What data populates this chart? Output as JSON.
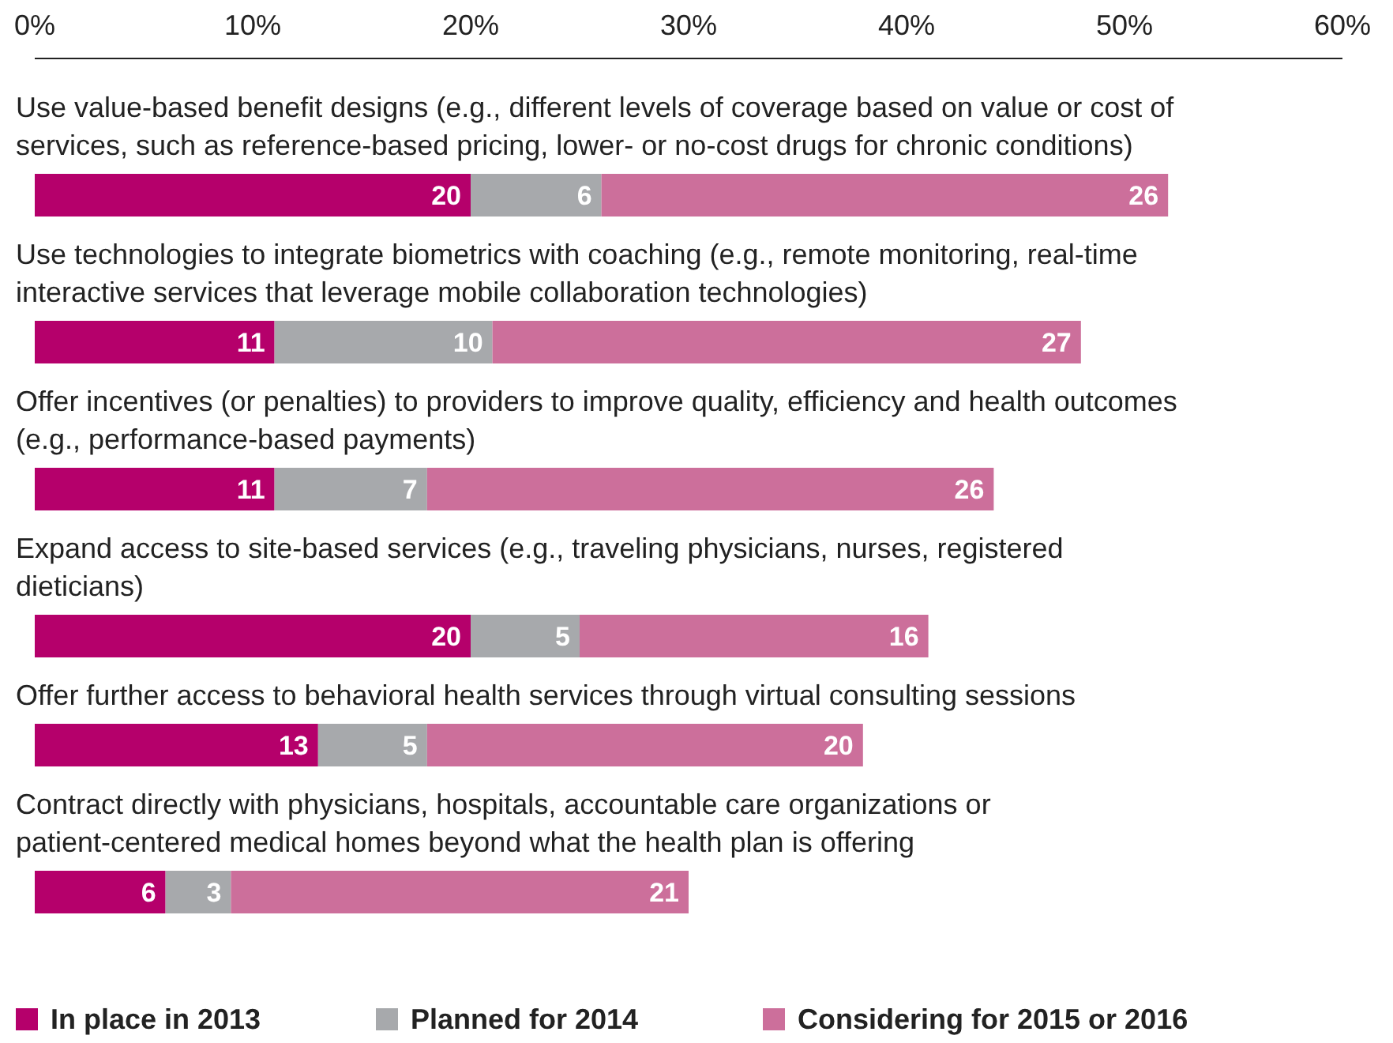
{
  "chart_data": {
    "type": "bar",
    "orientation": "horizontal",
    "stacked": true,
    "categories": [
      "Use value-based benefit designs (e.g., different levels of coverage based on value or cost of services, such as reference-based pricing, lower- or no-cost drugs for chronic conditions)",
      "Use technologies to integrate biometrics with coaching (e.g., remote monitoring, real-time interactive services that leverage mobile collaboration technologies)",
      "Offer incentives (or penalties) to providers to improve quality, efficiency and health outcomes (e.g., performance-based payments)",
      "Expand access to site-based services (e.g., traveling physicians, nurses, registered dieticians)",
      "Offer further access to behavioral health services through virtual consulting sessions",
      "Contract directly with physicians, hospitals, accountable care organizations or patient-centered medical homes beyond what the health plan is offering"
    ],
    "series": [
      {
        "name": "In place in 2013",
        "color": "#b5006b",
        "values": [
          20,
          11,
          11,
          20,
          13,
          6
        ]
      },
      {
        "name": "Planned for 2014",
        "color": "#a7a9ac",
        "values": [
          6,
          10,
          7,
          5,
          5,
          3
        ]
      },
      {
        "name": "Considering for 2015 or 2016",
        "color": "#cc6f9b",
        "values": [
          26,
          27,
          26,
          16,
          20,
          21
        ]
      }
    ],
    "xlim": [
      0,
      60
    ],
    "xticks": [
      {
        "value": 0,
        "label": "0%"
      },
      {
        "value": 10,
        "label": "10%"
      },
      {
        "value": 20,
        "label": "20%"
      },
      {
        "value": 30,
        "label": "30%"
      },
      {
        "value": 40,
        "label": "40%"
      },
      {
        "value": 50,
        "label": "50%"
      },
      {
        "value": 60,
        "label": "60%"
      }
    ],
    "data_labels": true,
    "legend": "bottom",
    "grid": false
  }
}
